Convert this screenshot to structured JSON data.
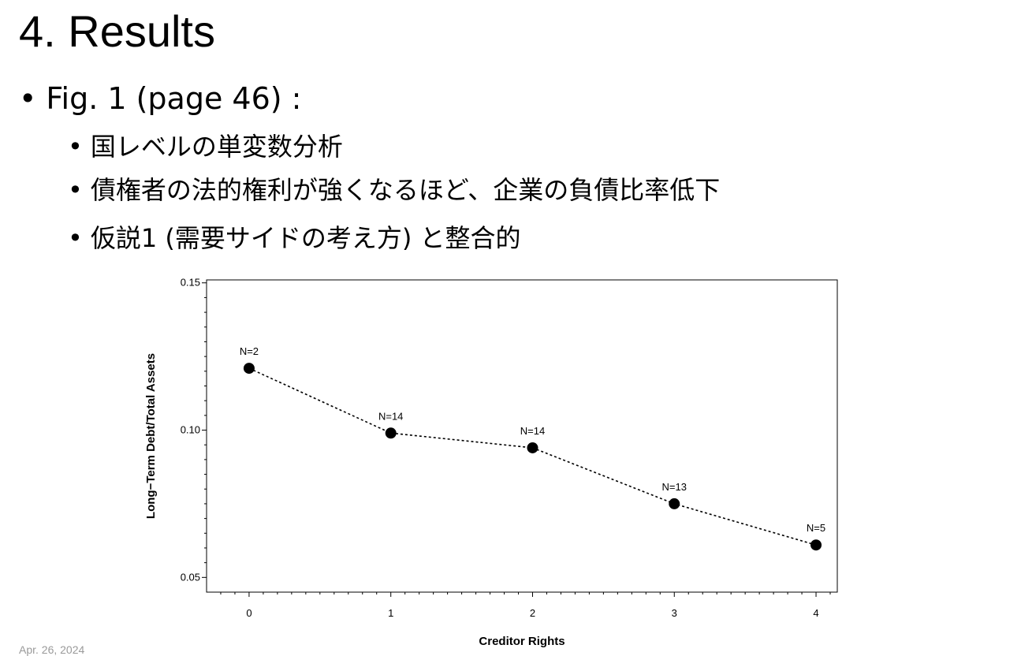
{
  "slide": {
    "title": "4. Results",
    "bullet_main": "Fig. 1 (page 46) :",
    "bullets_sub": [
      "国レベルの単変数分析",
      "債権者の法的権利が強くなるほど、企業の負債比率低下",
      "仮説1 (需要サイドの考え方) と整合的"
    ],
    "bullet_glyph": "•",
    "date": "Apr. 26, 2024"
  },
  "chart_data": {
    "type": "line",
    "title": "",
    "xlabel": "Creditor Rights",
    "ylabel": "Long−Term Debt/Total Assets",
    "x": [
      0,
      1,
      2,
      3,
      4
    ],
    "y": [
      0.121,
      0.099,
      0.094,
      0.075,
      0.061
    ],
    "point_labels": [
      "N=2",
      "N=14",
      "N=14",
      "N=13",
      "N=5"
    ],
    "xlim": [
      -0.3,
      4.15
    ],
    "ylim": [
      0.045,
      0.151
    ],
    "x_ticks": [
      0,
      1,
      2,
      3,
      4
    ],
    "x_tick_labels": [
      "0",
      "1",
      "2",
      "3",
      "4"
    ],
    "y_ticks": [
      0.05,
      0.1,
      0.15
    ],
    "y_tick_labels": [
      "0.05",
      "0.10",
      "0.15"
    ],
    "line_style": "dotted",
    "marker": "filled-circle",
    "grid": false,
    "colors": {
      "line": "#000000",
      "marker": "#000000"
    }
  }
}
